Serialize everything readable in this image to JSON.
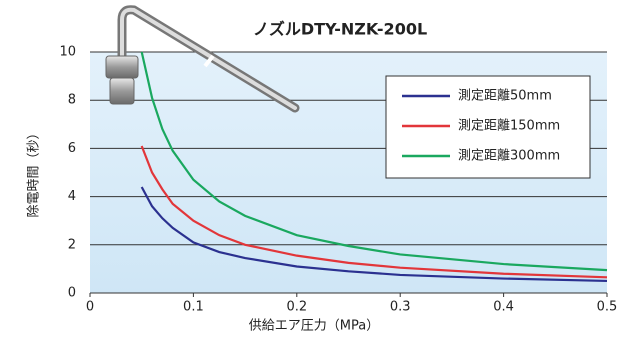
{
  "chart_data": {
    "type": "line",
    "title": "ノズルDTY-NZK-200L",
    "x_label": "供給エア圧力（MPa）",
    "y_label": "除電時間（秒）",
    "x": [
      0.05,
      0.06,
      0.07,
      0.08,
      0.1,
      0.125,
      0.15,
      0.2,
      0.25,
      0.3,
      0.4,
      0.5
    ],
    "series": [
      {
        "name": "測定距離50mm",
        "color": "#2b3190",
        "values": [
          4.4,
          3.6,
          3.1,
          2.7,
          2.1,
          1.7,
          1.45,
          1.1,
          0.9,
          0.75,
          0.6,
          0.5
        ]
      },
      {
        "name": "測定距離150mm",
        "color": "#e2363a",
        "values": [
          6.1,
          5.0,
          4.3,
          3.7,
          3.0,
          2.4,
          2.0,
          1.55,
          1.25,
          1.05,
          0.8,
          0.65
        ]
      },
      {
        "name": "測定距離300mm",
        "color": "#1aa85f",
        "values": [
          10,
          8.1,
          6.8,
          5.9,
          4.7,
          3.8,
          3.2,
          2.4,
          1.95,
          1.6,
          1.2,
          0.95
        ]
      }
    ],
    "xlim": [
      0,
      0.5
    ],
    "xticks": [
      0,
      0.1,
      0.2,
      0.3,
      0.4,
      0.5
    ],
    "ylim": [
      0,
      10
    ],
    "yticks": [
      0,
      2,
      4,
      6,
      8,
      10
    ],
    "grid": true
  }
}
